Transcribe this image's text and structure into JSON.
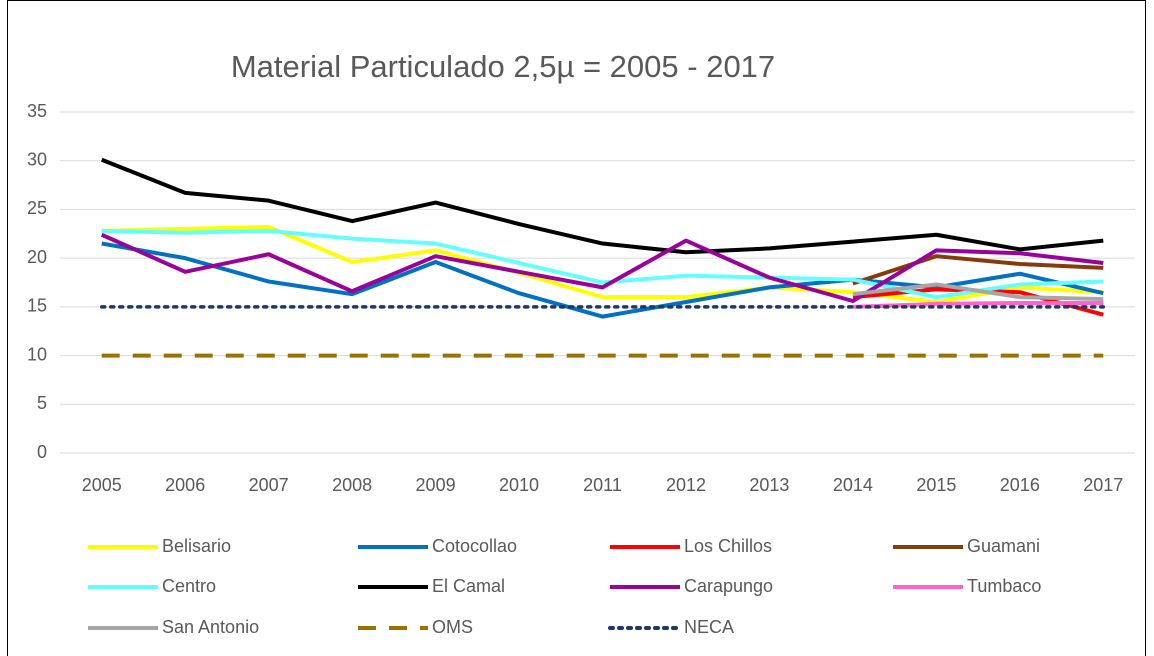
{
  "chart_data": {
    "type": "line",
    "title": "Material Particulado 2,5µ = 2005 - 2017",
    "categories": [
      "2005",
      "2006",
      "2007",
      "2008",
      "2009",
      "2010",
      "2011",
      "2012",
      "2013",
      "2014",
      "2015",
      "2016",
      "2017"
    ],
    "ylim": [
      0,
      35
    ],
    "yticks": [
      0,
      5,
      10,
      15,
      20,
      25,
      30,
      35
    ],
    "grid": true,
    "legend": "bottom",
    "series": [
      {
        "name": "Belisario",
        "color": "#ffff00",
        "style": "solid",
        "values": [
          22.8,
          23,
          23.2,
          19.6,
          20.8,
          18.5,
          16,
          16,
          17,
          16.5,
          15.5,
          17,
          16.5
        ]
      },
      {
        "name": "Cotocollao",
        "color": "#0070c0",
        "style": "solid",
        "values": [
          21.5,
          20,
          17.6,
          16.3,
          19.6,
          16.4,
          14,
          15.5,
          17,
          17.8,
          17,
          18.4,
          16.4
        ]
      },
      {
        "name": "Los Chillos",
        "color": "#ff0000",
        "style": "solid",
        "values": [
          null,
          null,
          null,
          null,
          null,
          null,
          null,
          null,
          null,
          16,
          16.8,
          16.5,
          14.2
        ]
      },
      {
        "name": "Guamani",
        "color": "#843c0c",
        "style": "solid",
        "values": [
          null,
          null,
          null,
          null,
          null,
          null,
          null,
          null,
          null,
          17.4,
          20.2,
          19.4,
          19
        ]
      },
      {
        "name": "Centro",
        "color": "#66ffff",
        "style": "solid",
        "values": [
          22.8,
          22.6,
          22.8,
          22,
          21.5,
          19.5,
          17.5,
          18.2,
          18,
          17.8,
          16,
          17.3,
          17.6
        ]
      },
      {
        "name": "El Camal",
        "color": "#000000",
        "style": "solid",
        "values": [
          30.1,
          26.7,
          25.9,
          23.8,
          25.7,
          23.5,
          21.5,
          20.6,
          21,
          21.7,
          22.4,
          20.9,
          21.8
        ]
      },
      {
        "name": "Carapungo",
        "color": "#990099",
        "style": "solid",
        "values": [
          22.4,
          18.6,
          20.4,
          16.6,
          20.2,
          18.6,
          17,
          21.8,
          18,
          15.6,
          20.8,
          20.5,
          19.5
        ]
      },
      {
        "name": "Tumbaco",
        "color": "#ff66cc",
        "style": "solid",
        "values": [
          null,
          null,
          null,
          null,
          null,
          null,
          null,
          null,
          null,
          15,
          15.3,
          15.4,
          15.4
        ]
      },
      {
        "name": "San Antonio",
        "color": "#a6a6a6",
        "style": "solid",
        "values": [
          null,
          null,
          null,
          null,
          null,
          null,
          null,
          null,
          null,
          16.3,
          17.3,
          16,
          15.8
        ]
      },
      {
        "name": "OMS",
        "color": "#997300",
        "style": "dashed",
        "values": [
          10,
          10,
          10,
          10,
          10,
          10,
          10,
          10,
          10,
          10,
          10,
          10,
          10
        ]
      },
      {
        "name": "NECA",
        "color": "#1f3864",
        "style": "dotted",
        "values": [
          15,
          15,
          15,
          15,
          15,
          15,
          15,
          15,
          15,
          15,
          15,
          15,
          15
        ]
      }
    ]
  }
}
